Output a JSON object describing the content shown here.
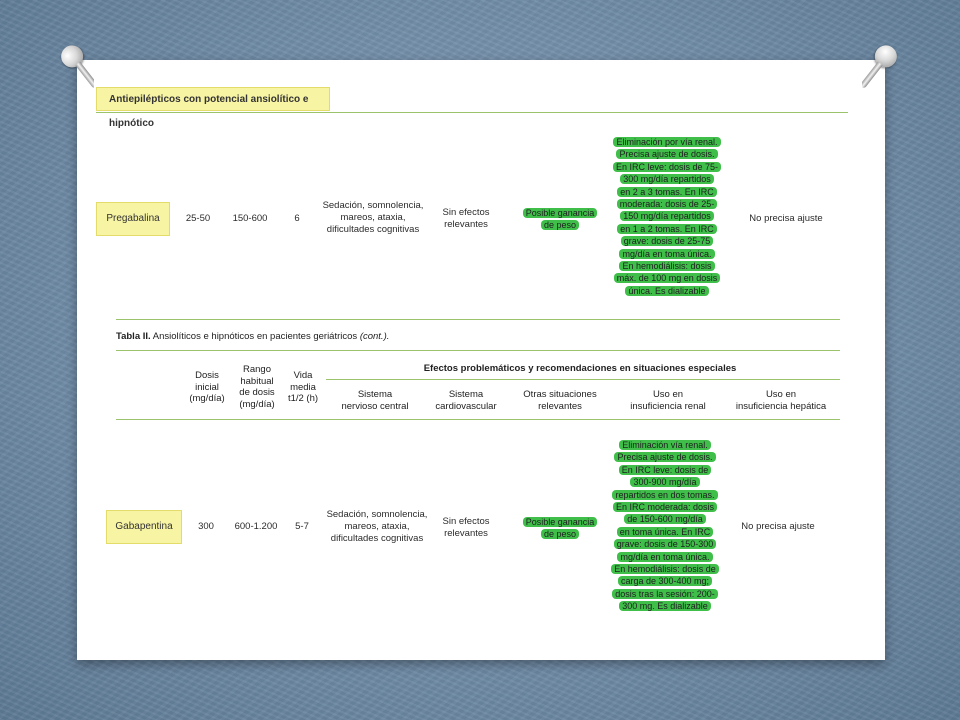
{
  "section_header": "Antiepilépticos con potencial ansiolítico e hipnótico",
  "table_title": {
    "label": "Tabla II.",
    "text": "Ansiolíticos e hipnóticos en pacientes geriátricos",
    "cont": "(cont.)."
  },
  "headers": {
    "dosis_inicial": [
      "Dosis",
      "inicial",
      "(mg/día)"
    ],
    "rango": [
      "Rango",
      "habitual",
      "de dosis",
      "(mg/día)"
    ],
    "vida_media": [
      "Vida",
      "media",
      "t1/2 (h)"
    ],
    "efectos": "Efectos problemáticos y recomendaciones en situaciones especiales",
    "snc": [
      "Sistema",
      "nervioso central"
    ],
    "cardio": [
      "Sistema",
      "cardiovascular"
    ],
    "otras": [
      "Otras situaciones",
      "relevantes"
    ],
    "renal": [
      "Uso en",
      "insuficiencia renal"
    ],
    "hepatica": [
      "Uso en",
      "insuficiencia hepática"
    ]
  },
  "rows": {
    "pregabalina": {
      "name": "Pregabalina",
      "dosis_inicial": "25-50",
      "rango": "150-600",
      "vida_media": "6",
      "snc": [
        "Sedación, somnolencia,",
        "mareos, ataxia,",
        "dificultades cognitivas"
      ],
      "cardio": [
        "Sin efectos",
        "relevantes"
      ],
      "otras": [
        "Posible ganancia",
        "de peso"
      ],
      "renal": [
        "Eliminación por vía renal.",
        "Precisa ajuste de dosis.",
        "En IRC leve: dosis de 75-",
        "300 mg/día repartidos",
        "en 2 a 3 tomas. En IRC",
        "moderada: dosis de 25-",
        "150 mg/día repartidos",
        "en 1 a 2 tomas. En IRC",
        "grave: dosis de 25-75",
        "mg/día en toma única.",
        "En hemodiálisis: dosis",
        "máx. de 100 mg en dosis",
        "única. Es dializable"
      ],
      "hepatica": "No precisa ajuste"
    },
    "gabapentina": {
      "name": "Gabapentina",
      "dosis_inicial": "300",
      "rango": "600-1.200",
      "vida_media": "5-7",
      "snc": [
        "Sedación, somnolencia,",
        "mareos, ataxia,",
        "dificultades cognitivas"
      ],
      "cardio": [
        "Sin efectos",
        "relevantes"
      ],
      "otras": [
        "Posible ganancia",
        "de peso"
      ],
      "renal": [
        "Eliminación vía renal.",
        "Precisa ajuste de dosis.",
        "En IRC leve: dosis de",
        "300-900 mg/día",
        "repartidos en dos tomas.",
        "En IRC moderada: dosis",
        "de 150-600 mg/día",
        "en toma única. En IRC",
        "grave: dosis de 150-300",
        "mg/día en toma única.",
        "En hemodiálisis: dosis de",
        "carga de 300-400 mg;",
        "dosis tras la sesión: 200-",
        "300 mg. Es dializable"
      ],
      "hepatica": "No precisa ajuste"
    }
  },
  "colors": {
    "highlight_yellow": "#f7f4a4",
    "highlight_green": "#3fbf4a",
    "rule_green": "#9bc36b"
  }
}
